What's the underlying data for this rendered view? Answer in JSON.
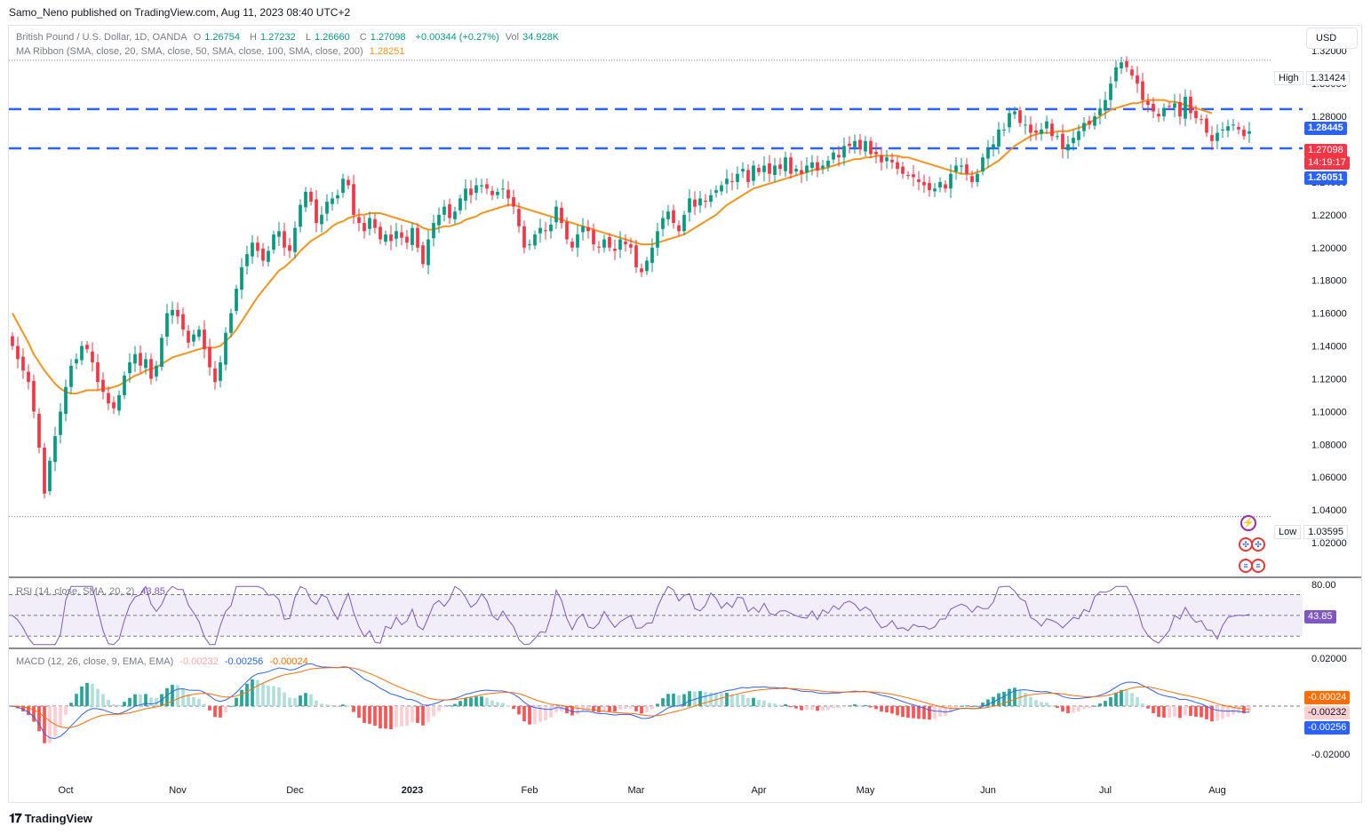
{
  "header": {
    "publisher": "Samo_Neno published on TradingView.com, Aug 11, 2023 08:40 UTC+2",
    "currency_button": "USD",
    "footer_logo": "TradingView"
  },
  "legend_main": {
    "symbol": "British Pound / U.S. Dollar, 1D, OANDA",
    "open_label": "O",
    "open": "1.26754",
    "high_label": "H",
    "high": "1.27232",
    "low_label": "L",
    "low": "1.26660",
    "close_label": "C",
    "close": "1.27098",
    "change": "+0.00344 (+0.27%)",
    "vol_label": "Vol",
    "vol": "34.928K"
  },
  "legend_ma": {
    "name": "MA Ribbon (SMA, close, 20, SMA, close, 50, SMA, close, 100, SMA, close, 200)",
    "value": "1.28251"
  },
  "legend_rsi": {
    "name": "RSI (14, close, SMA, 20, 2)",
    "value": "43.85"
  },
  "legend_macd": {
    "name": "MACD (12, 26, close, 9, EMA, EMA)",
    "hist": "-0.00232",
    "macd": "-0.00256",
    "signal": "-0.00024"
  },
  "price_axis": {
    "ticks": [
      "1.32000",
      "1.30000",
      "1.28000",
      "1.24000",
      "1.22000",
      "1.20000",
      "1.18000",
      "1.16000",
      "1.14000",
      "1.12000",
      "1.10000",
      "1.08000",
      "1.06000",
      "1.04000",
      "1.02000"
    ]
  },
  "rsi_axis": {
    "ticks": [
      "80.00"
    ]
  },
  "macd_axis": {
    "ticks": [
      "0.02000",
      "-0.02000"
    ]
  },
  "time_axis": {
    "labels": [
      "Oct",
      "Nov",
      "Dec",
      "2023",
      "Feb",
      "Mar",
      "Apr",
      "May",
      "Jun",
      "Jul",
      "Aug"
    ]
  },
  "tags": {
    "high_key": "High",
    "high_val": "1.31424",
    "low_key": "Low",
    "low_val": "1.03595",
    "res_line": "1.28445",
    "sup_line": "1.26051",
    "last_price": "1.27098",
    "countdown": "14:19:17",
    "rsi_last": "43.85",
    "macd_signal": "-0.00024",
    "macd_hist": "-0.00232",
    "macd_line": "-0.00256"
  },
  "colors": {
    "up": "#089981",
    "down": "#f23645",
    "ma": "#f7931a",
    "hline": "#2962ff",
    "rsi": "#7e57c2",
    "macd": "#2962ff",
    "signal": "#ff6d00"
  },
  "chart_data": {
    "type": "candlestick",
    "symbol": "GBPUSD",
    "interval": "1D",
    "ylim": [
      1.0,
      1.325
    ],
    "horizontal_lines": [
      1.28445,
      1.26051
    ],
    "high": 1.31424,
    "low": 1.03595,
    "month_marks": [
      {
        "label": "Oct",
        "index": 10
      },
      {
        "label": "Nov",
        "index": 31
      },
      {
        "label": "Dec",
        "index": 53
      },
      {
        "label": "2023",
        "index": 75
      },
      {
        "label": "Feb",
        "index": 97
      },
      {
        "label": "Mar",
        "index": 117
      },
      {
        "label": "Apr",
        "index": 140
      },
      {
        "label": "May",
        "index": 160
      },
      {
        "label": "Jun",
        "index": 183
      },
      {
        "label": "Jul",
        "index": 205
      },
      {
        "label": "Aug",
        "index": 226
      }
    ],
    "closes": [
      1.14,
      1.132,
      1.125,
      1.118,
      1.1,
      1.078,
      1.05,
      1.07,
      1.085,
      1.1,
      1.115,
      1.128,
      1.132,
      1.14,
      1.138,
      1.13,
      1.118,
      1.112,
      1.105,
      1.102,
      1.11,
      1.122,
      1.13,
      1.135,
      1.128,
      1.132,
      1.12,
      1.128,
      1.145,
      1.16,
      1.162,
      1.158,
      1.15,
      1.142,
      1.147,
      1.15,
      1.138,
      1.127,
      1.118,
      1.13,
      1.148,
      1.16,
      1.175,
      1.188,
      1.196,
      1.203,
      1.198,
      1.192,
      1.198,
      1.208,
      1.21,
      1.2,
      1.198,
      1.212,
      1.226,
      1.234,
      1.228,
      1.215,
      1.22,
      1.228,
      1.23,
      1.232,
      1.242,
      1.238,
      1.22,
      1.215,
      1.21,
      1.218,
      1.212,
      1.205,
      1.208,
      1.204,
      1.21,
      1.206,
      1.203,
      1.212,
      1.2,
      1.19,
      1.205,
      1.215,
      1.22,
      1.225,
      1.218,
      1.222,
      1.23,
      1.236,
      1.232,
      1.238,
      1.238,
      1.236,
      1.232,
      1.234,
      1.236,
      1.23,
      1.225,
      1.213,
      1.2,
      1.202,
      1.208,
      1.212,
      1.21,
      1.214,
      1.225,
      1.215,
      1.205,
      1.2,
      1.208,
      1.213,
      1.21,
      1.202,
      1.2,
      1.205,
      1.2,
      1.198,
      1.205,
      1.202,
      1.2,
      1.188,
      1.185,
      1.192,
      1.2,
      1.21,
      1.218,
      1.222,
      1.215,
      1.21,
      1.22,
      1.23,
      1.225,
      1.23,
      1.228,
      1.232,
      1.235,
      1.238,
      1.242,
      1.24,
      1.245,
      1.248,
      1.24,
      1.25,
      1.246,
      1.25,
      1.245,
      1.25,
      1.248,
      1.255,
      1.245,
      1.248,
      1.245,
      1.25,
      1.252,
      1.247,
      1.25,
      1.253,
      1.258,
      1.255,
      1.262,
      1.262,
      1.265,
      1.26,
      1.265,
      1.257,
      1.257,
      1.252,
      1.255,
      1.252,
      1.248,
      1.245,
      1.244,
      1.243,
      1.24,
      1.238,
      1.235,
      1.236,
      1.24,
      1.236,
      1.245,
      1.25,
      1.25,
      1.245,
      1.24,
      1.245,
      1.255,
      1.26,
      1.263,
      1.272,
      1.272,
      1.282,
      1.283,
      1.276,
      1.275,
      1.27,
      1.27,
      1.272,
      1.277,
      1.268,
      1.268,
      1.26,
      1.263,
      1.267,
      1.271,
      1.276,
      1.275,
      1.28,
      1.285,
      1.29,
      1.3,
      1.31,
      1.313,
      1.31,
      1.305,
      1.3,
      1.29,
      1.287,
      1.283,
      1.28,
      1.285,
      1.286,
      1.288,
      1.28,
      1.292,
      1.282,
      1.279,
      1.278,
      1.27,
      1.265,
      1.27,
      1.272,
      1.274,
      1.275,
      1.272,
      1.268,
      1.271
    ],
    "ma20": [
      1.16,
      1.154,
      1.148,
      1.142,
      1.135,
      1.13,
      1.125,
      1.121,
      1.117,
      1.114,
      1.112,
      1.111,
      1.111,
      1.112,
      1.113,
      1.113,
      1.113,
      1.114,
      1.114,
      1.115,
      1.116,
      1.118,
      1.12,
      1.122,
      1.123,
      1.125,
      1.126,
      1.127,
      1.129,
      1.131,
      1.133,
      1.134,
      1.135,
      1.136,
      1.137,
      1.138,
      1.139,
      1.139,
      1.139,
      1.14,
      1.143,
      1.146,
      1.15,
      1.155,
      1.16,
      1.165,
      1.17,
      1.174,
      1.178,
      1.182,
      1.186,
      1.188,
      1.191,
      1.194,
      1.198,
      1.201,
      1.204,
      1.206,
      1.208,
      1.21,
      1.213,
      1.215,
      1.216,
      1.218,
      1.219,
      1.22,
      1.22,
      1.221,
      1.221,
      1.221,
      1.22,
      1.219,
      1.218,
      1.217,
      1.216,
      1.215,
      1.214,
      1.212,
      1.211,
      1.211,
      1.212,
      1.213,
      1.213,
      1.214,
      1.215,
      1.217,
      1.218,
      1.219,
      1.221,
      1.222,
      1.223,
      1.224,
      1.225,
      1.226,
      1.226,
      1.225,
      1.224,
      1.223,
      1.222,
      1.221,
      1.22,
      1.219,
      1.218,
      1.217,
      1.216,
      1.215,
      1.214,
      1.213,
      1.212,
      1.211,
      1.21,
      1.209,
      1.208,
      1.207,
      1.206,
      1.205,
      1.204,
      1.203,
      1.202,
      1.202,
      1.202,
      1.203,
      1.204,
      1.205,
      1.206,
      1.207,
      1.208,
      1.21,
      1.212,
      1.214,
      1.216,
      1.218,
      1.22,
      1.223,
      1.226,
      1.228,
      1.23,
      1.232,
      1.234,
      1.236,
      1.237,
      1.238,
      1.239,
      1.24,
      1.241,
      1.242,
      1.243,
      1.244,
      1.245,
      1.246,
      1.247,
      1.248,
      1.248,
      1.249,
      1.25,
      1.251,
      1.252,
      1.253,
      1.254,
      1.254,
      1.255,
      1.255,
      1.256,
      1.256,
      1.256,
      1.256,
      1.256,
      1.255,
      1.255,
      1.254,
      1.253,
      1.252,
      1.251,
      1.25,
      1.249,
      1.248,
      1.247,
      1.246,
      1.245,
      1.245,
      1.245,
      1.246,
      1.247,
      1.249,
      1.251,
      1.253,
      1.256,
      1.259,
      1.262,
      1.264,
      1.266,
      1.268,
      1.269,
      1.27,
      1.27,
      1.27,
      1.271,
      1.271,
      1.271,
      1.272,
      1.273,
      1.274,
      1.276,
      1.278,
      1.28,
      1.282,
      1.284,
      1.285,
      1.286,
      1.287,
      1.288,
      1.288,
      1.289,
      1.29,
      1.29,
      1.29,
      1.29,
      1.289,
      1.289,
      1.288,
      1.287,
      1.286,
      1.285,
      1.284,
      1.283,
      1.282
    ]
  }
}
